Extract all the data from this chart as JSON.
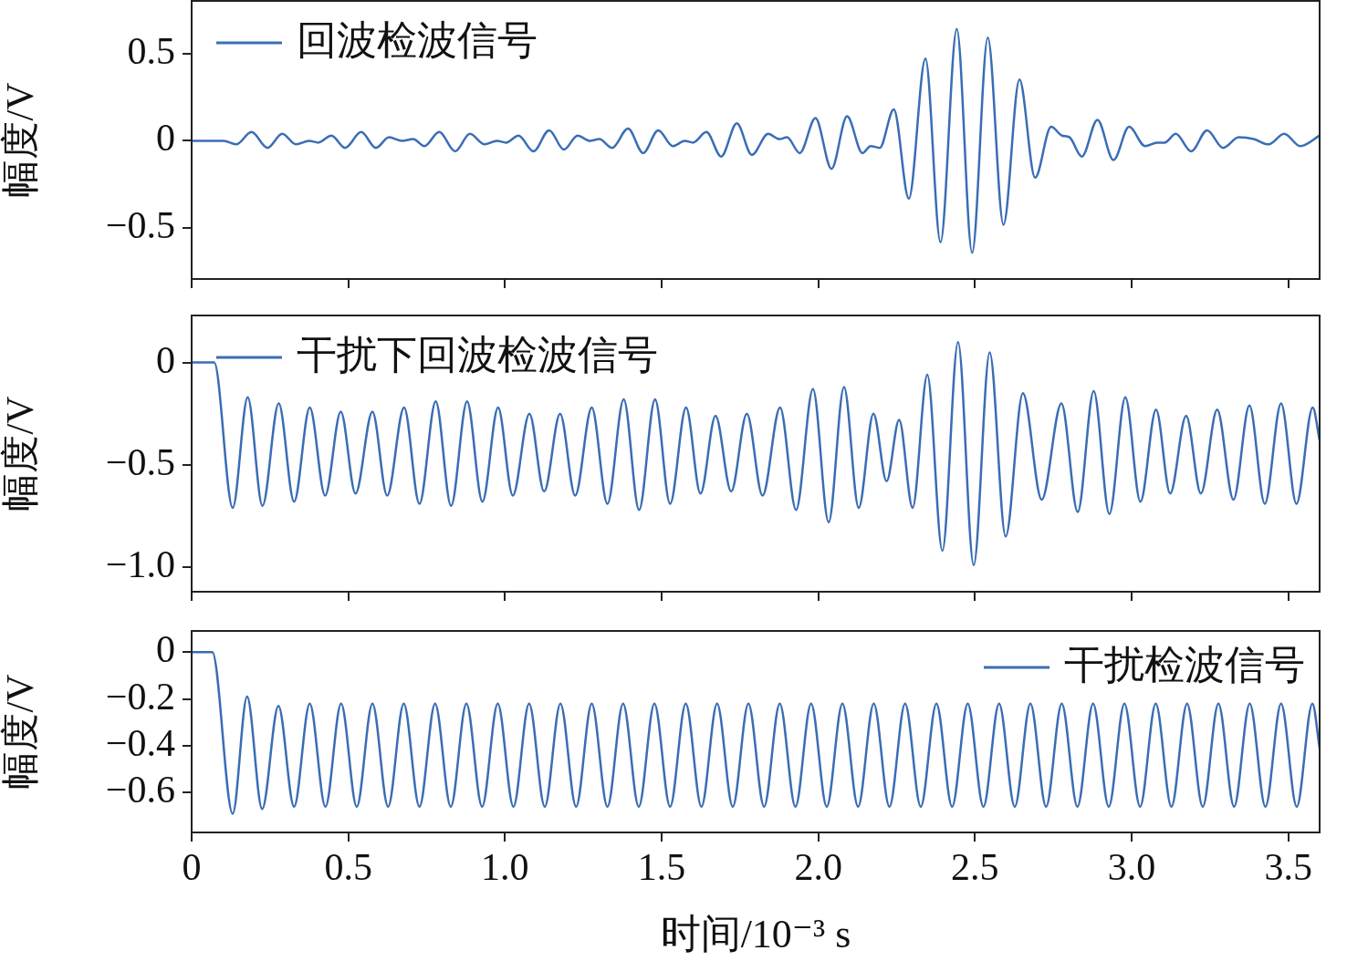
{
  "chart_data": [
    {
      "type": "line",
      "ylabel": "幅度/V",
      "legend": "top left",
      "tick_labels": "y",
      "xlim": [
        0,
        3.6
      ],
      "ylim": [
        -0.79,
        0.8
      ],
      "xticks": [
        0,
        0.5,
        1,
        1.5,
        2,
        2.5,
        3,
        3.5
      ],
      "yticks": [
        {
          "value": -0.5,
          "label": "−0.5"
        },
        {
          "value": 0,
          "label": "0"
        },
        {
          "value": 0.5,
          "label": "0.5"
        }
      ],
      "series": [
        {
          "name": "回波检波信号",
          "color": "#3a6db5",
          "x": [
            0,
            0.102,
            0.143,
            0.191,
            0.242,
            0.289,
            0.333,
            0.375,
            0.404,
            0.446,
            0.49,
            0.541,
            0.588,
            0.63,
            0.672,
            0.707,
            0.743,
            0.79,
            0.841,
            0.888,
            0.935,
            0.974,
            1.004,
            1.043,
            1.091,
            1.141,
            1.188,
            1.232,
            1.271,
            1.301,
            1.342,
            1.393,
            1.441,
            1.489,
            1.536,
            1.574,
            1.6,
            1.643,
            1.69,
            1.74,
            1.788,
            1.84,
            1.876,
            1.9,
            1.941,
            1.991,
            2.042,
            2.092,
            2.141,
            2.167,
            2.196,
            2.241,
            2.289,
            2.342,
            2.39,
            2.442,
            2.491,
            2.541,
            2.591,
            2.642,
            2.692,
            2.743,
            2.778,
            2.802,
            2.841,
            2.891,
            2.942,
            2.992,
            3.043,
            3.081,
            3.105,
            3.141,
            3.19,
            3.241,
            3.292,
            3.342,
            3.39,
            3.437,
            3.487,
            3.538,
            3.6
          ],
          "values": [
            0,
            0,
            -0.02,
            0.05,
            -0.04,
            0.04,
            -0.02,
            0,
            -0.01,
            0.03,
            -0.04,
            0.05,
            -0.04,
            0.02,
            0,
            0.01,
            -0.03,
            0.05,
            -0.06,
            0.04,
            -0.02,
            0,
            -0.01,
            0.03,
            -0.06,
            0.06,
            -0.05,
            0.03,
            0,
            0.01,
            -0.04,
            0.07,
            -0.07,
            0.06,
            -0.03,
            0,
            -0.01,
            0.05,
            -0.09,
            0.1,
            -0.08,
            0.04,
            0.01,
            0.02,
            -0.07,
            0.13,
            -0.16,
            0.14,
            -0.07,
            -0.03,
            -0.04,
            0.18,
            -0.33,
            0.47,
            -0.58,
            0.64,
            -0.64,
            0.59,
            -0.48,
            0.35,
            -0.21,
            0.08,
            0.03,
            0.02,
            -0.09,
            0.12,
            -0.11,
            0.08,
            -0.03,
            -0.01,
            -0.01,
            0.04,
            -0.06,
            0.06,
            -0.04,
            0.02,
            0.01,
            -0.02,
            0.04,
            -0.03,
            0.03
          ]
        }
      ]
    },
    {
      "type": "line",
      "ylabel": "幅度/V",
      "legend": "top left",
      "tick_labels": "y",
      "xlim": [
        0,
        3.6
      ],
      "ylim": [
        -1.12,
        0.23
      ],
      "xticks": [
        0,
        0.5,
        1,
        1.5,
        2,
        2.5,
        3,
        3.5
      ],
      "yticks": [
        {
          "value": -1,
          "label": "−1.0"
        },
        {
          "value": -0.5,
          "label": "−0.5"
        },
        {
          "value": 0,
          "label": "0"
        }
      ],
      "series": [
        {
          "name": "干扰下回波检波信号",
          "color": "#3a6db5",
          "x": [
            0,
            0.072,
            0.131,
            0.179,
            0.226,
            0.278,
            0.327,
            0.377,
            0.426,
            0.476,
            0.523,
            0.577,
            0.624,
            0.678,
            0.727,
            0.779,
            0.828,
            0.879,
            0.928,
            0.978,
            1.025,
            1.078,
            1.125,
            1.176,
            1.224,
            1.277,
            1.327,
            1.379,
            1.428,
            1.479,
            1.527,
            1.578,
            1.624,
            1.672,
            1.722,
            1.772,
            1.822,
            1.878,
            1.929,
            1.983,
            2.033,
            2.082,
            2.129,
            2.176,
            2.218,
            2.258,
            2.301,
            2.348,
            2.396,
            2.446,
            2.496,
            2.547,
            2.598,
            2.653,
            2.713,
            2.776,
            2.828,
            2.879,
            2.929,
            2.98,
            3.028,
            3.078,
            3.123,
            3.174,
            3.221,
            3.273,
            3.325,
            3.376,
            3.425,
            3.477,
            3.526,
            3.578,
            3.6
          ],
          "values": [
            0,
            0,
            -0.71,
            -0.17,
            -0.7,
            -0.2,
            -0.68,
            -0.22,
            -0.65,
            -0.24,
            -0.64,
            -0.24,
            -0.65,
            -0.22,
            -0.69,
            -0.19,
            -0.7,
            -0.19,
            -0.68,
            -0.22,
            -0.65,
            -0.25,
            -0.63,
            -0.25,
            -0.65,
            -0.22,
            -0.69,
            -0.18,
            -0.72,
            -0.18,
            -0.69,
            -0.22,
            -0.64,
            -0.26,
            -0.63,
            -0.25,
            -0.65,
            -0.22,
            -0.72,
            -0.13,
            -0.78,
            -0.12,
            -0.71,
            -0.25,
            -0.58,
            -0.28,
            -0.71,
            -0.06,
            -0.92,
            0.1,
            -0.99,
            0.05,
            -0.85,
            -0.15,
            -0.67,
            -0.2,
            -0.73,
            -0.14,
            -0.74,
            -0.17,
            -0.68,
            -0.23,
            -0.64,
            -0.26,
            -0.64,
            -0.23,
            -0.67,
            -0.21,
            -0.69,
            -0.2,
            -0.69,
            -0.22,
            -0.38
          ]
        }
      ]
    },
    {
      "type": "line",
      "xlabel": "时间/10⁻³ s",
      "ylabel": "幅度/V",
      "legend": "top right",
      "xlim": [
        0,
        3.6
      ],
      "ylim": [
        -0.77,
        0.09
      ],
      "xticks": [
        0,
        0.5,
        {
          "value": 1,
          "label": "1.0"
        },
        1.5,
        {
          "value": 2,
          "label": "2.0"
        },
        2.5,
        {
          "value": 3,
          "label": "3.0"
        },
        3.5
      ],
      "yticks": [
        {
          "value": -0.6,
          "label": "−0.6"
        },
        {
          "value": -0.4,
          "label": "−0.4"
        },
        {
          "value": -0.2,
          "label": "−0.2"
        },
        {
          "value": 0,
          "label": "0"
        }
      ],
      "series": [
        {
          "name": "干扰检波信号",
          "color": "#3a6db5",
          "x": [
            0,
            0.066,
            0.131,
            0.177,
            0.225,
            0.277,
            0.327,
            0.377,
            0.427,
            0.477,
            0.527,
            0.577,
            0.627,
            0.677,
            0.727,
            0.777,
            0.827,
            0.877,
            0.927,
            0.977,
            1.027,
            1.077,
            1.127,
            1.177,
            1.227,
            1.277,
            1.327,
            1.377,
            1.427,
            1.477,
            1.527,
            1.577,
            1.627,
            1.677,
            1.727,
            1.777,
            1.827,
            1.877,
            1.927,
            1.977,
            2.027,
            2.077,
            2.127,
            2.177,
            2.227,
            2.277,
            2.327,
            2.377,
            2.427,
            2.477,
            2.527,
            2.577,
            2.627,
            2.677,
            2.727,
            2.777,
            2.827,
            2.877,
            2.927,
            2.977,
            3.027,
            3.077,
            3.127,
            3.177,
            3.227,
            3.277,
            3.327,
            3.377,
            3.427,
            3.477,
            3.527,
            3.577,
            3.6
          ],
          "values": [
            0,
            0,
            -0.69,
            -0.19,
            -0.67,
            -0.23,
            -0.66,
            -0.22,
            -0.66,
            -0.22,
            -0.66,
            -0.22,
            -0.66,
            -0.22,
            -0.66,
            -0.22,
            -0.66,
            -0.22,
            -0.66,
            -0.22,
            -0.66,
            -0.22,
            -0.66,
            -0.22,
            -0.66,
            -0.22,
            -0.66,
            -0.22,
            -0.66,
            -0.22,
            -0.66,
            -0.22,
            -0.66,
            -0.22,
            -0.66,
            -0.22,
            -0.66,
            -0.22,
            -0.66,
            -0.22,
            -0.66,
            -0.22,
            -0.66,
            -0.22,
            -0.66,
            -0.22,
            -0.66,
            -0.22,
            -0.66,
            -0.22,
            -0.66,
            -0.22,
            -0.66,
            -0.22,
            -0.66,
            -0.22,
            -0.66,
            -0.22,
            -0.66,
            -0.22,
            -0.66,
            -0.22,
            -0.66,
            -0.22,
            -0.66,
            -0.22,
            -0.66,
            -0.22,
            -0.66,
            -0.22,
            -0.66,
            -0.22,
            -0.41
          ]
        }
      ]
    }
  ]
}
